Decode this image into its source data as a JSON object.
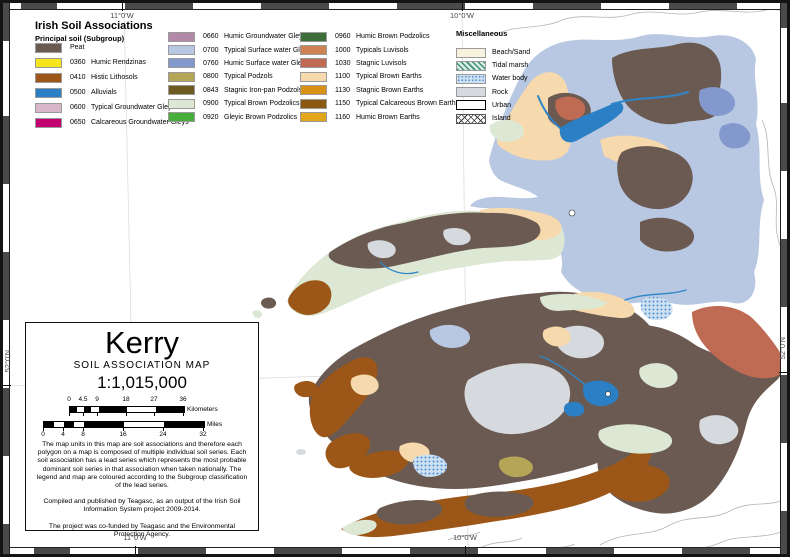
{
  "legend": {
    "title": "Irish Soil Associations",
    "subtitle": "Principal soil (Subgroup)",
    "col1": [
      {
        "code": "",
        "label": "Peat",
        "color": "#6b5a52"
      },
      {
        "code": "0360",
        "label": "Humic Rendzinas",
        "color": "#f5e61c"
      },
      {
        "code": "0410",
        "label": "Histic Lithosols",
        "color": "#9c5718"
      },
      {
        "code": "0500",
        "label": "Alluvials",
        "color": "#2b80c5"
      },
      {
        "code": "0600",
        "label": "Typical Groundwater Gleys",
        "color": "#d8b6c9"
      },
      {
        "code": "0650",
        "label": "Calcareous Groundwater Gleys",
        "color": "#c2006f"
      }
    ],
    "col2": [
      {
        "code": "0660",
        "label": "Humic Groundwater Gleys",
        "color": "#b289a6"
      },
      {
        "code": "0700",
        "label": "Typical Surface water Gleys",
        "color": "#b8c8e2"
      },
      {
        "code": "0760",
        "label": "Humic Surface water Gleys",
        "color": "#8399cd"
      },
      {
        "code": "0800",
        "label": "Typical Podzols",
        "color": "#b4a557"
      },
      {
        "code": "0843",
        "label": "Stagnic Iron-pan Podzols",
        "color": "#6e5a21"
      },
      {
        "code": "0900",
        "label": "Typical Brown Podzolics",
        "color": "#dce8d4"
      },
      {
        "code": "0920",
        "label": "Gleyic Brown Podzolics",
        "color": "#47ad3b"
      }
    ],
    "col3": [
      {
        "code": "0960",
        "label": "Humic Brown Podzolics",
        "color": "#3d6e39"
      },
      {
        "code": "1000",
        "label": "Typicals Luvisols",
        "color": "#cd8354"
      },
      {
        "code": "1030",
        "label": "Stagnic Luvisols",
        "color": "#bf6a52"
      },
      {
        "code": "1100",
        "label": "Typical Brown Earths",
        "color": "#f6d9ac"
      },
      {
        "code": "1130",
        "label": "Stagnic Brown Earths",
        "color": "#d99114"
      },
      {
        "code": "1150",
        "label": "Typical Calcareous Brown Earths",
        "color": "#8a5a13"
      },
      {
        "code": "1160",
        "label": "Humic Brown Earths",
        "color": "#e2a61b"
      }
    ]
  },
  "misc": {
    "title": "Miscellaneous",
    "items": [
      {
        "label": "Beach/Sand",
        "swatch": "beach"
      },
      {
        "label": "Tidal marsh",
        "swatch": "tidal"
      },
      {
        "label": "Water body",
        "swatch": "waterbody"
      },
      {
        "label": "Rock",
        "swatch": "rock"
      },
      {
        "label": "Urban",
        "swatch": "urban"
      },
      {
        "label": "Island",
        "swatch": "island"
      }
    ]
  },
  "title_block": {
    "region": "Kerry",
    "subtitle": "SOIL ASSOCIATION MAP",
    "scale": "1:1,015,000",
    "km_bar": {
      "labels": [
        "0",
        "4.5",
        "9",
        "18",
        "27",
        "36"
      ],
      "unit": "Kilometers"
    },
    "mile_bar": {
      "labels": [
        "0",
        "4",
        "8",
        "16",
        "24",
        "32"
      ],
      "unit": "Miles"
    },
    "notes": [
      "The map units in this map are soil associations and therefore each polygon on a map is composed of multiple individual soil series. Each soil association has a lead series which represents the most probable dominant soil series in that association when taken nationally. The legend and map are coloured according to the Subgroup classification of the lead series.",
      "Compiled and published by Teagasc, as an output of the Irish Soil Information System project 2009-2014.",
      "The project was co-funded by Teagasc and the Environmental Protection Agency."
    ]
  },
  "graticule": {
    "top_left": "11°0'W",
    "top_right": "10°0'W",
    "bottom_left": "11°0'W",
    "bottom_right": "10°0'W",
    "left": "52°0'N",
    "right": "52°0'N"
  },
  "colors": {
    "peat": "#6b5a52",
    "humic_rendzinas": "#f5e61c",
    "histic_lithosols": "#9c5718",
    "alluvials": "#2b80c5",
    "typical_groundwater_gleys": "#d8b6c9",
    "calcareous_groundwater_gleys": "#c2006f",
    "humic_groundwater_gleys": "#b289a6",
    "typical_surface_water_gleys": "#b8c8e2",
    "humic_surface_water_gleys": "#8399cd",
    "typical_podzols": "#b4a557",
    "stagnic_ironpan_podzols": "#6e5a21",
    "typical_brown_podzolics": "#dce8d4",
    "gleyic_brown_podzolics": "#47ad3b",
    "humic_brown_podzolics": "#3d6e39",
    "typicals_luvisols": "#cd8354",
    "stagnic_luvisols": "#bf6a52",
    "typical_brown_earths": "#f6d9ac",
    "stagnic_brown_earths": "#d99114",
    "typical_calcareous_brown_earths": "#8a5a13",
    "humic_brown_earths": "#e2a61b",
    "beach_sand": "#f6f2dd",
    "rock": "#d6dade",
    "water": "#2e86c8",
    "coastline": "#b4b4b4",
    "graticule_line": "#d9d9d9"
  }
}
